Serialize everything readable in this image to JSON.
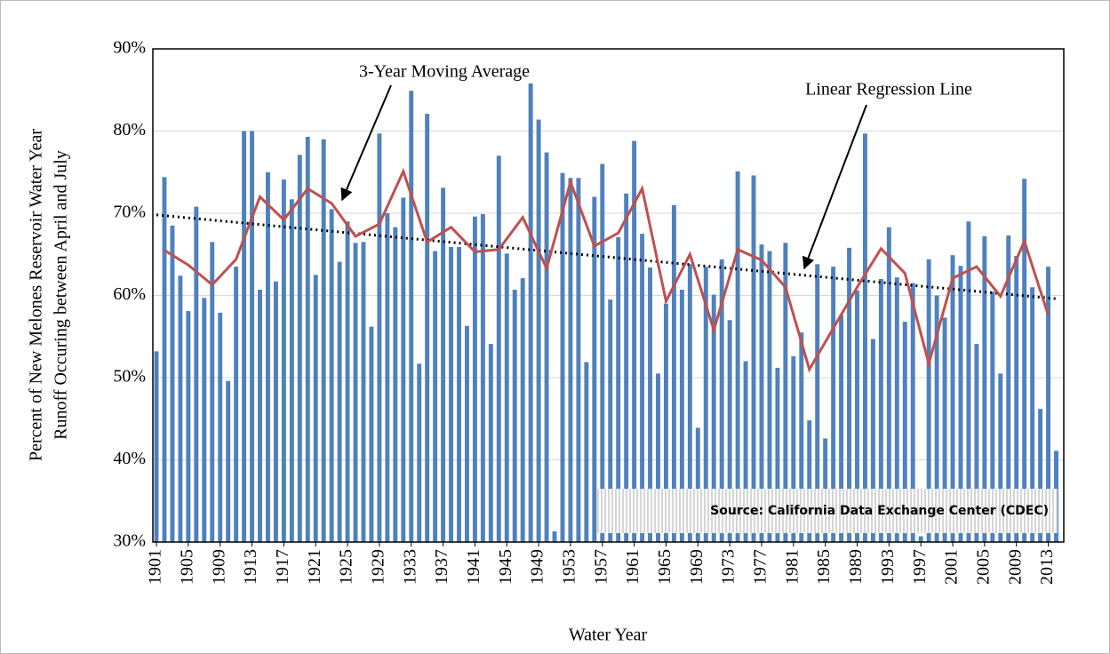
{
  "chart_data": {
    "type": "bar",
    "x_label": "Water Year",
    "y_label": [
      "Percent of New Melones Reservoir Water Year",
      "Runoff Occuring between April and July"
    ],
    "x": [
      1901,
      1902,
      1903,
      1904,
      1905,
      1906,
      1907,
      1908,
      1909,
      1910,
      1911,
      1912,
      1913,
      1914,
      1915,
      1916,
      1917,
      1918,
      1919,
      1920,
      1921,
      1922,
      1923,
      1924,
      1925,
      1926,
      1927,
      1928,
      1929,
      1930,
      1931,
      1932,
      1933,
      1934,
      1935,
      1936,
      1937,
      1938,
      1939,
      1940,
      1941,
      1942,
      1943,
      1944,
      1945,
      1946,
      1947,
      1948,
      1949,
      1950,
      1951,
      1952,
      1953,
      1954,
      1955,
      1956,
      1957,
      1958,
      1959,
      1960,
      1961,
      1962,
      1963,
      1964,
      1965,
      1966,
      1967,
      1968,
      1969,
      1970,
      1971,
      1972,
      1973,
      1974,
      1975,
      1976,
      1977,
      1978,
      1979,
      1980,
      1981,
      1982,
      1983,
      1984,
      1985,
      1986,
      1987,
      1988,
      1989,
      1990,
      1991,
      1992,
      1993,
      1994,
      1995,
      1996,
      1997,
      1998,
      1999,
      2000,
      2001,
      2002,
      2003,
      2004,
      2005,
      2006,
      2007,
      2008,
      2009,
      2010,
      2011,
      2012,
      2013,
      2014
    ],
    "values": [
      53.2,
      74.4,
      68.5,
      62.4,
      58.1,
      70.8,
      59.7,
      66.5,
      57.9,
      49.6,
      63.5,
      80,
      80,
      60.7,
      75,
      61.7,
      74.1,
      71.7,
      77.1,
      79.3,
      62.5,
      79,
      70.5,
      64.1,
      69,
      66.4,
      66.5,
      56.2,
      79.7,
      70,
      68.3,
      71.9,
      84.9,
      51.7,
      82.1,
      65.4,
      73.1,
      65.9,
      65.9,
      56.3,
      69.6,
      69.9,
      54.1,
      77,
      65.1,
      60.7,
      62.1,
      85.8,
      81.4,
      77.4,
      31.3,
      74.9,
      74.3,
      74.3,
      51.9,
      72,
      76,
      59.5,
      67.1,
      72.4,
      78.8,
      67.5,
      63.4,
      50.5,
      59,
      71,
      60.7,
      63.8,
      43.9,
      63.5,
      60.1,
      64.4,
      57,
      75.1,
      52,
      74.6,
      66.2,
      65.4,
      51.2,
      66.4,
      52.6,
      55.5,
      44.8,
      63.8,
      42.6,
      63.5,
      57.6,
      65.8,
      60.6,
      79.7,
      54.7,
      62,
      68.3,
      62.2,
      56.8,
      61.5,
      30.7,
      64.4,
      60,
      57.3,
      64.9,
      63.6,
      69,
      54.1,
      67.2,
      60.5,
      50.5,
      67.3,
      64.8,
      74.2,
      61,
      46.2,
      63.5,
      41.1
    ],
    "color": "#4f81bd",
    "moving_average": {
      "color": "#c0504d",
      "x": [
        1902,
        1905,
        1908,
        1911,
        1914,
        1917,
        1920,
        1923,
        1926,
        1929,
        1932,
        1935,
        1938,
        1941,
        1944,
        1947,
        1950,
        1953,
        1956,
        1959,
        1962,
        1965,
        1968,
        1971,
        1974,
        1977,
        1980,
        1983,
        1986,
        1989,
        1992,
        1995,
        1998,
        2001,
        2004,
        2007,
        2010,
        2013
      ],
      "values": [
        65.5,
        63.7,
        61.3,
        64.4,
        72,
        69.2,
        73,
        71.2,
        67.2,
        68.7,
        75.1,
        66.5,
        68.3,
        65.3,
        65.6,
        69.5,
        63.3,
        73.8,
        66,
        67.6,
        73,
        59.3,
        65,
        55.8,
        65.6,
        64.3,
        61,
        51,
        56,
        61,
        65.7,
        62.7,
        51.7,
        62.1,
        63.5,
        59.9,
        66.6,
        57.6
      ]
    },
    "regression": {
      "color": "#000000",
      "x": [
        1901,
        2014
      ],
      "values": [
        69.8,
        59.6
      ]
    },
    "annotations": [
      "3-Year Moving Average",
      "Linear Regression Line"
    ],
    "source": "Source:  California Data Exchange Center (CDEC)",
    "xlim": [
      1900.55,
      2014.95
    ],
    "xticks": [
      1901,
      1905,
      1909,
      1913,
      1917,
      1921,
      1925,
      1929,
      1933,
      1937,
      1941,
      1945,
      1949,
      1953,
      1957,
      1961,
      1965,
      1969,
      1973,
      1977,
      1981,
      1985,
      1989,
      1993,
      1997,
      2001,
      2005,
      2009,
      2013
    ],
    "ylim": [
      30,
      90
    ],
    "yticks": [
      {
        "value": 30,
        "label": "30%"
      },
      {
        "value": 40,
        "label": "40%"
      },
      {
        "value": 50,
        "label": "50%"
      },
      {
        "value": 60,
        "label": "60%"
      },
      {
        "value": 70,
        "label": "70%"
      },
      {
        "value": 80,
        "label": "80%"
      },
      {
        "value": 90,
        "label": "90%"
      }
    ],
    "grid": true
  }
}
